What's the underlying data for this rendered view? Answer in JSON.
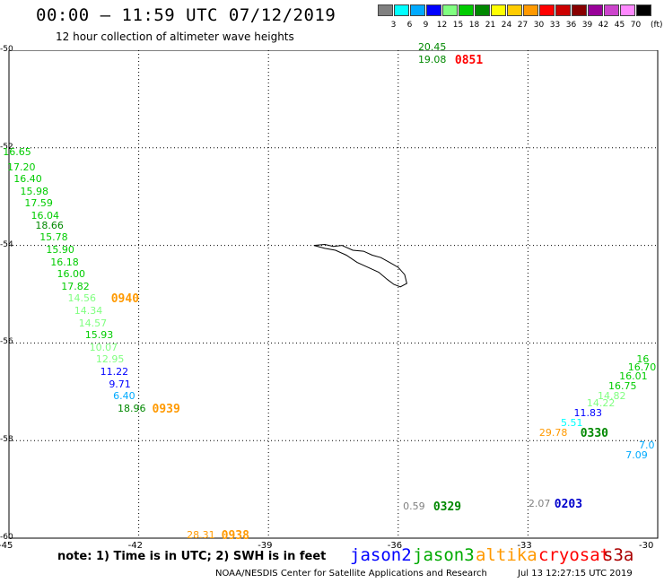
{
  "header": {
    "title": "00:00 – 11:59 UTC 07/12/2019",
    "subtitle": "12 hour collection of altimeter wave heights"
  },
  "legend": {
    "unit": "(ft)",
    "bins": [
      {
        "label": "3",
        "color": "#808080"
      },
      {
        "label": "6",
        "color": "#00ffff"
      },
      {
        "label": "9",
        "color": "#00aaff"
      },
      {
        "label": "12",
        "color": "#0000ff"
      },
      {
        "label": "15",
        "color": "#80ff80"
      },
      {
        "label": "18",
        "color": "#00cc00"
      },
      {
        "label": "21",
        "color": "#008800"
      },
      {
        "label": "24",
        "color": "#ffff00"
      },
      {
        "label": "27",
        "color": "#ffcc00"
      },
      {
        "label": "30",
        "color": "#ff9900"
      },
      {
        "label": "33",
        "color": "#ff0000"
      },
      {
        "label": "36",
        "color": "#cc0000"
      },
      {
        "label": "39",
        "color": "#880000"
      },
      {
        "label": "42",
        "color": "#990099"
      },
      {
        "label": "45",
        "color": "#cc44cc"
      },
      {
        "label": "70",
        "color": "#ff88ff"
      },
      {
        "label": "",
        "color": "#000000"
      }
    ]
  },
  "axes": {
    "lat_ticks": [
      "-50",
      "-52",
      "-54",
      "-56",
      "-58",
      "-60"
    ],
    "lon_ticks": [
      "-45",
      "-42",
      "-39",
      "-36",
      "-33",
      "-30"
    ]
  },
  "observations": [
    {
      "text": "20.45",
      "color": "#008800",
      "lat": -49.95,
      "lon": -35.25
    },
    {
      "text": "19.08",
      "color": "#008800",
      "lat": -50.2,
      "lon": -35.25
    },
    {
      "text": "16.65",
      "color": "#00cc00",
      "lat": -52.1,
      "lon": -44.85
    },
    {
      "text": "17.20",
      "color": "#00cc00",
      "lat": -52.4,
      "lon": -44.75
    },
    {
      "text": "16.40",
      "color": "#00cc00",
      "lat": -52.65,
      "lon": -44.6
    },
    {
      "text": "15.98",
      "color": "#00cc00",
      "lat": -52.9,
      "lon": -44.45
    },
    {
      "text": "17.59",
      "color": "#00cc00",
      "lat": -53.15,
      "lon": -44.35
    },
    {
      "text": "16.04",
      "color": "#00cc00",
      "lat": -53.4,
      "lon": -44.2
    },
    {
      "text": "18.66",
      "color": "#008800",
      "lat": -53.6,
      "lon": -44.1
    },
    {
      "text": "15.78",
      "color": "#00cc00",
      "lat": -53.85,
      "lon": -44.0
    },
    {
      "text": "15.90",
      "color": "#00cc00",
      "lat": -54.1,
      "lon": -43.85
    },
    {
      "text": "16.18",
      "color": "#00cc00",
      "lat": -54.35,
      "lon": -43.75
    },
    {
      "text": "16.00",
      "color": "#00cc00",
      "lat": -54.6,
      "lon": -43.6
    },
    {
      "text": "17.82",
      "color": "#00cc00",
      "lat": -54.85,
      "lon": -43.5
    },
    {
      "text": "14.56",
      "color": "#80ff80",
      "lat": -55.1,
      "lon": -43.35
    },
    {
      "text": "14.34",
      "color": "#80ff80",
      "lat": -55.35,
      "lon": -43.2
    },
    {
      "text": "14.57",
      "color": "#80ff80",
      "lat": -55.6,
      "lon": -43.1
    },
    {
      "text": "15.93",
      "color": "#00cc00",
      "lat": -55.85,
      "lon": -42.95
    },
    {
      "text": "10.07",
      "color": "#80ff80",
      "lat": -56.1,
      "lon": -42.85
    },
    {
      "text": "12.95",
      "color": "#80ff80",
      "lat": -56.35,
      "lon": -42.7
    },
    {
      "text": "11.22",
      "color": "#0000ff",
      "lat": -56.6,
      "lon": -42.6
    },
    {
      "text": "9.71",
      "color": "#0000ff",
      "lat": -56.85,
      "lon": -42.4
    },
    {
      "text": "6.40",
      "color": "#00aaff",
      "lat": -57.1,
      "lon": -42.3
    },
    {
      "text": "18.96",
      "color": "#008800",
      "lat": -57.35,
      "lon": -42.2
    },
    {
      "text": "16",
      "color": "#00cc00",
      "lat": -56.35,
      "lon": -30.2
    },
    {
      "text": "16.70",
      "color": "#00cc00",
      "lat": -56.5,
      "lon": -30.4
    },
    {
      "text": "16.01",
      "color": "#00cc00",
      "lat": -56.7,
      "lon": -30.6
    },
    {
      "text": "16.75",
      "color": "#00cc00",
      "lat": -56.9,
      "lon": -30.85
    },
    {
      "text": "14.82",
      "color": "#80ff80",
      "lat": -57.1,
      "lon": -31.1
    },
    {
      "text": "14.22",
      "color": "#80ff80",
      "lat": -57.25,
      "lon": -31.35
    },
    {
      "text": "11.83",
      "color": "#0000ff",
      "lat": -57.45,
      "lon": -31.65
    },
    {
      "text": "5.51",
      "color": "#00ffff",
      "lat": -57.65,
      "lon": -31.95
    },
    {
      "text": "29.78",
      "color": "#ff9900",
      "lat": -57.85,
      "lon": -32.45
    },
    {
      "text": "7.0",
      "color": "#00aaff",
      "lat": -58.1,
      "lon": -30.1
    },
    {
      "text": "7.09",
      "color": "#00aaff",
      "lat": -58.3,
      "lon": -30.45
    },
    {
      "text": "0.59",
      "color": "#808080",
      "lat": -59.35,
      "lon": -35.6
    },
    {
      "text": "2.07",
      "color": "#808080",
      "lat": -59.3,
      "lon": -32.7
    },
    {
      "text": "28.31",
      "color": "#ff9900",
      "lat": -59.95,
      "lon": -40.6
    }
  ],
  "pass_times": [
    {
      "text": "0851",
      "color": "#ff0000",
      "lat": -50.2,
      "lon": -34.4
    },
    {
      "text": "0940",
      "color": "#ff9900",
      "lat": -55.1,
      "lon": -42.35
    },
    {
      "text": "0939",
      "color": "#ff9900",
      "lat": -57.35,
      "lon": -41.4
    },
    {
      "text": "0330",
      "color": "#008800",
      "lat": -57.85,
      "lon": -31.5
    },
    {
      "text": "0329",
      "color": "#008800",
      "lat": -59.35,
      "lon": -34.9
    },
    {
      "text": "0203",
      "color": "#0000cc",
      "lat": -59.3,
      "lon": -32.1
    },
    {
      "text": "0938",
      "color": "#ff9900",
      "lat": -59.95,
      "lon": -39.8
    }
  ],
  "footer": {
    "note": "note: 1) Time is in UTC; 2) SWH is in feet",
    "satellites": [
      {
        "name": "jason2",
        "color": "#0000ff"
      },
      {
        "name": "jason3",
        "color": "#00aa00"
      },
      {
        "name": "altika",
        "color": "#ff9900"
      },
      {
        "name": "cryosat",
        "color": "#ff0000"
      },
      {
        "name": "s3a",
        "color": "#aa0000"
      }
    ],
    "credit": "NOAA/NESDIS Center for Satellite Applications and Research",
    "timestamp": "Jul 13 12:27:15 UTC 2019"
  }
}
